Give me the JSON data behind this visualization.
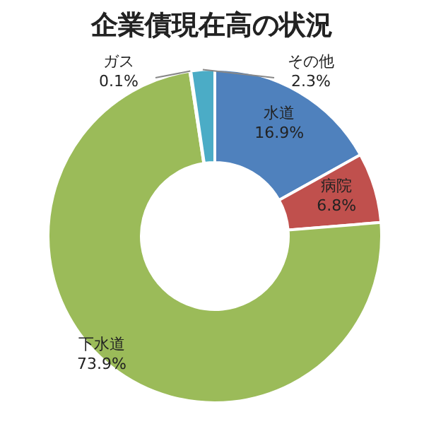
{
  "chart_data": {
    "type": "donut",
    "title": "企業債現在高の状況",
    "categories": [
      "水道",
      "病院",
      "下水道",
      "ガス",
      "その他"
    ],
    "values": [
      16.9,
      6.8,
      73.9,
      0.1,
      2.3
    ],
    "value_labels": [
      "16.9%",
      "6.8%",
      "73.9%",
      "0.1%",
      "2.3%"
    ],
    "colors": [
      "#4f81bd",
      "#c0504d",
      "#9bbb59",
      "#8064a2",
      "#4bacc6"
    ]
  }
}
